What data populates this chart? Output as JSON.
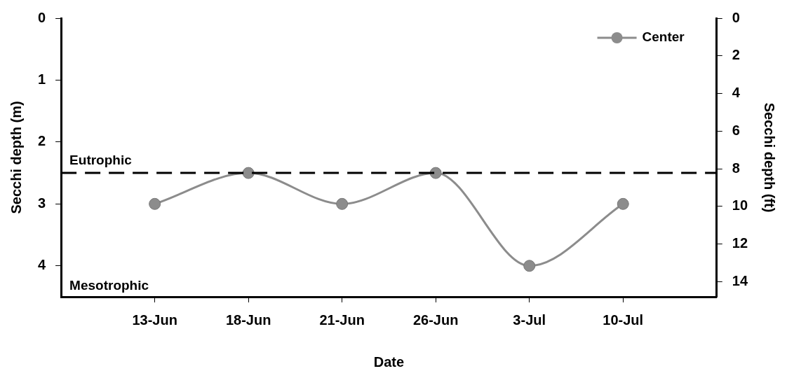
{
  "chart_data": {
    "type": "line",
    "xlabel": "Date",
    "ylabel": "Secchi depth (m)",
    "y2label": "Secchi depth (ft)",
    "categories": [
      "13-Jun",
      "18-Jun",
      "21-Jun",
      "26-Jun",
      "3-Jul",
      "10-Jul"
    ],
    "series": [
      {
        "name": "Center",
        "color": "#8c8c8c",
        "values": [
          3,
          2.5,
          3,
          2.5,
          4,
          3
        ]
      }
    ],
    "ylim": [
      4.5,
      0
    ],
    "yticks": [
      0,
      1,
      2,
      3,
      4
    ],
    "y2lim": [
      14.8,
      0
    ],
    "y2ticks": [
      0,
      2,
      4,
      6,
      8,
      10,
      12,
      14
    ],
    "ref_lines": [
      {
        "axis": "y",
        "value": 2.5,
        "label": "Eutrophic",
        "color": "#000000",
        "line_style": "dashed"
      }
    ],
    "annotations": [
      "Mesotrophic"
    ],
    "grid": false,
    "legend": "top right",
    "marker": "circle",
    "line_style": "solid"
  }
}
